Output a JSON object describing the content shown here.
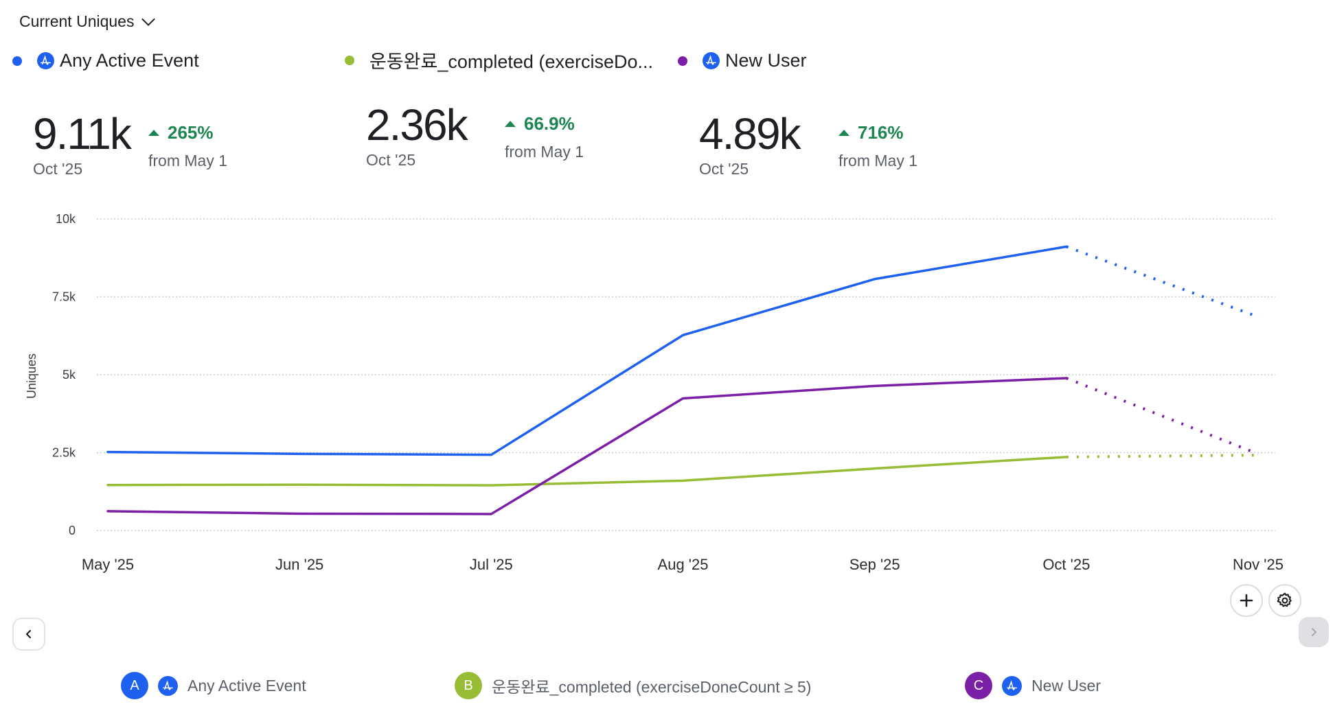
{
  "header": {
    "metric_selector": "Current Uniques"
  },
  "legend": [
    {
      "label": "Any Active Event",
      "color": "#1e61f0",
      "has_icon": true
    },
    {
      "label": "운동완료_completed (exerciseDo...",
      "color": "#97bc35",
      "has_icon": false
    },
    {
      "label": "New User",
      "color": "#7b20a6",
      "has_icon": true
    }
  ],
  "metrics": [
    {
      "value": "9.11k",
      "period": "Oct '25",
      "change": "265%",
      "direction": "up",
      "from": "from May 1"
    },
    {
      "value": "2.36k",
      "period": "Oct '25",
      "change": "66.9%",
      "direction": "up",
      "from": "from May 1"
    },
    {
      "value": "4.89k",
      "period": "Oct '25",
      "change": "716%",
      "direction": "up",
      "from": "from May 1"
    }
  ],
  "controls": {
    "add_icon": "plus-icon",
    "settings_icon": "gear-icon",
    "prev_icon": "chevron-left-icon",
    "next_icon": "chevron-right-icon"
  },
  "footer_legend": [
    {
      "badge": "A",
      "label": "Any Active Event",
      "color": "#1e61f0",
      "has_icon": true
    },
    {
      "badge": "B",
      "label": "운동완료_completed (exerciseDoneCount ≥ 5)",
      "color": "#97bc35",
      "has_icon": false
    },
    {
      "badge": "C",
      "label": "New User",
      "color": "#7b20a6",
      "has_icon": true
    }
  ],
  "chart_data": {
    "type": "line",
    "title": "",
    "xlabel": "",
    "ylabel": "Uniques",
    "categories": [
      "May '25",
      "Jun '25",
      "Jul '25",
      "Aug '25",
      "Sep '25",
      "Oct '25",
      "Nov '25"
    ],
    "y_ticks": [
      0,
      2500,
      5000,
      7500,
      10000
    ],
    "y_tick_labels": [
      "0",
      "2.5k",
      "5k",
      "7.5k",
      "10k"
    ],
    "ylim": [
      0,
      10000
    ],
    "grid": true,
    "grid_style": "dotted",
    "legend_position": "top",
    "incomplete_last_period": true,
    "series": [
      {
        "name": "Any Active Event",
        "color": "#1e61f0",
        "values": [
          2520,
          2460,
          2430,
          6270,
          8070,
          9110,
          6860
        ]
      },
      {
        "name": "운동완료_completed (exerciseDoneCount ≥ 5)",
        "color": "#97bc35",
        "values": [
          1460,
          1470,
          1450,
          1600,
          1990,
          2360,
          2420
        ]
      },
      {
        "name": "New User",
        "color": "#7b20a6",
        "values": [
          620,
          540,
          530,
          4240,
          4640,
          4890,
          2460
        ]
      }
    ]
  }
}
